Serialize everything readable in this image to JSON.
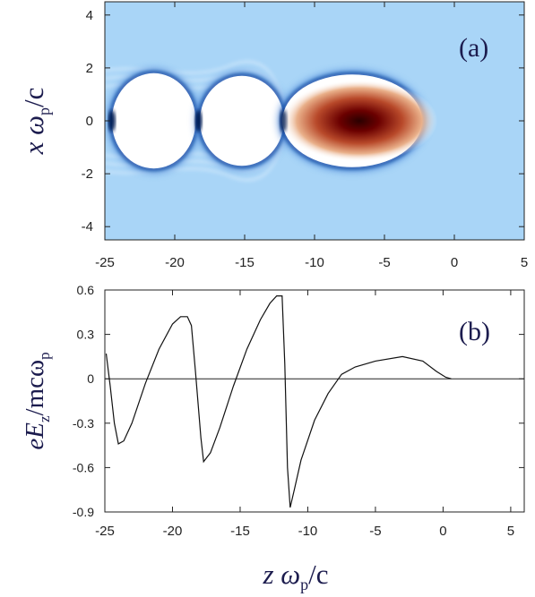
{
  "chart_data": [
    {
      "type": "heatmap",
      "panel_label": "(a)",
      "ylabel_main": "x ω",
      "ylabel_sub": "p",
      "ylabel_tail": "/c",
      "xlim": [
        -25,
        5
      ],
      "ylim": [
        -4.5,
        4.5
      ],
      "x_ticks": [
        "-25",
        "-20",
        "-15",
        "-10",
        "-5",
        "0",
        "5"
      ],
      "x_tick_values": [
        -25,
        -20,
        -15,
        -10,
        -5,
        0,
        5
      ],
      "y_ticks": [
        "4",
        "2",
        "0",
        "-2",
        "-4"
      ],
      "y_tick_values": [
        4,
        2,
        0,
        -2,
        -4
      ],
      "colors": {
        "background": "#a9d5f7",
        "cavity": "#ffffff",
        "sheath": "#0a2a7a",
        "hot": "#6b0000",
        "warm": "#c86a3c"
      },
      "features": {
        "bubbles": [
          {
            "center_x": -21.5,
            "half_length": 3.0,
            "half_width": 1.8
          },
          {
            "center_x": -15.2,
            "half_length": 3.0,
            "half_width": 1.7
          },
          {
            "center_x": -7.3,
            "half_length": 5.0,
            "half_width": 1.75
          }
        ],
        "hot_core_center_x": -6.8
      }
    },
    {
      "type": "line",
      "panel_label": "(b)",
      "ylabel_main": "eE",
      "ylabel_sub": "z",
      "ylabel_tail": "/mcω",
      "ylabel_sub2": "p",
      "xlabel_main": "z ω",
      "xlabel_sub": "p",
      "xlabel_tail": "/c",
      "xlim": [
        -25,
        6
      ],
      "ylim": [
        -0.9,
        0.6
      ],
      "x_ticks": [
        "-25",
        "-20",
        "-15",
        "-10",
        "-5",
        "0",
        "5"
      ],
      "x_tick_values": [
        -25,
        -20,
        -15,
        -10,
        -5,
        0,
        5
      ],
      "y_ticks": [
        "0.6",
        "0.3",
        "0",
        "-0.3",
        "-0.6",
        "-0.9"
      ],
      "y_tick_values": [
        0.6,
        0.3,
        0,
        -0.3,
        -0.6,
        -0.9
      ],
      "zero_line": true,
      "x": [
        -24.9,
        -24.6,
        -24.3,
        -24.0,
        -23.6,
        -23.0,
        -22.0,
        -21.0,
        -20.0,
        -19.4,
        -18.9,
        -18.6,
        -18.3,
        -17.9,
        -17.7,
        -17.2,
        -16.5,
        -15.5,
        -14.5,
        -13.5,
        -12.8,
        -12.3,
        -11.9,
        -11.7,
        -11.5,
        -11.3,
        -11.0,
        -10.5,
        -9.5,
        -8.5,
        -7.5,
        -6.5,
        -5.0,
        -3.0,
        -1.5,
        -0.5,
        0.2,
        0.6
      ],
      "y": [
        0.17,
        -0.05,
        -0.3,
        -0.44,
        -0.42,
        -0.3,
        -0.03,
        0.2,
        0.37,
        0.42,
        0.42,
        0.36,
        0.05,
        -0.4,
        -0.56,
        -0.5,
        -0.33,
        -0.05,
        0.2,
        0.4,
        0.51,
        0.56,
        0.56,
        0.1,
        -0.6,
        -0.87,
        -0.75,
        -0.55,
        -0.28,
        -0.1,
        0.03,
        0.08,
        0.12,
        0.15,
        0.12,
        0.05,
        0.01,
        0.0
      ]
    }
  ]
}
